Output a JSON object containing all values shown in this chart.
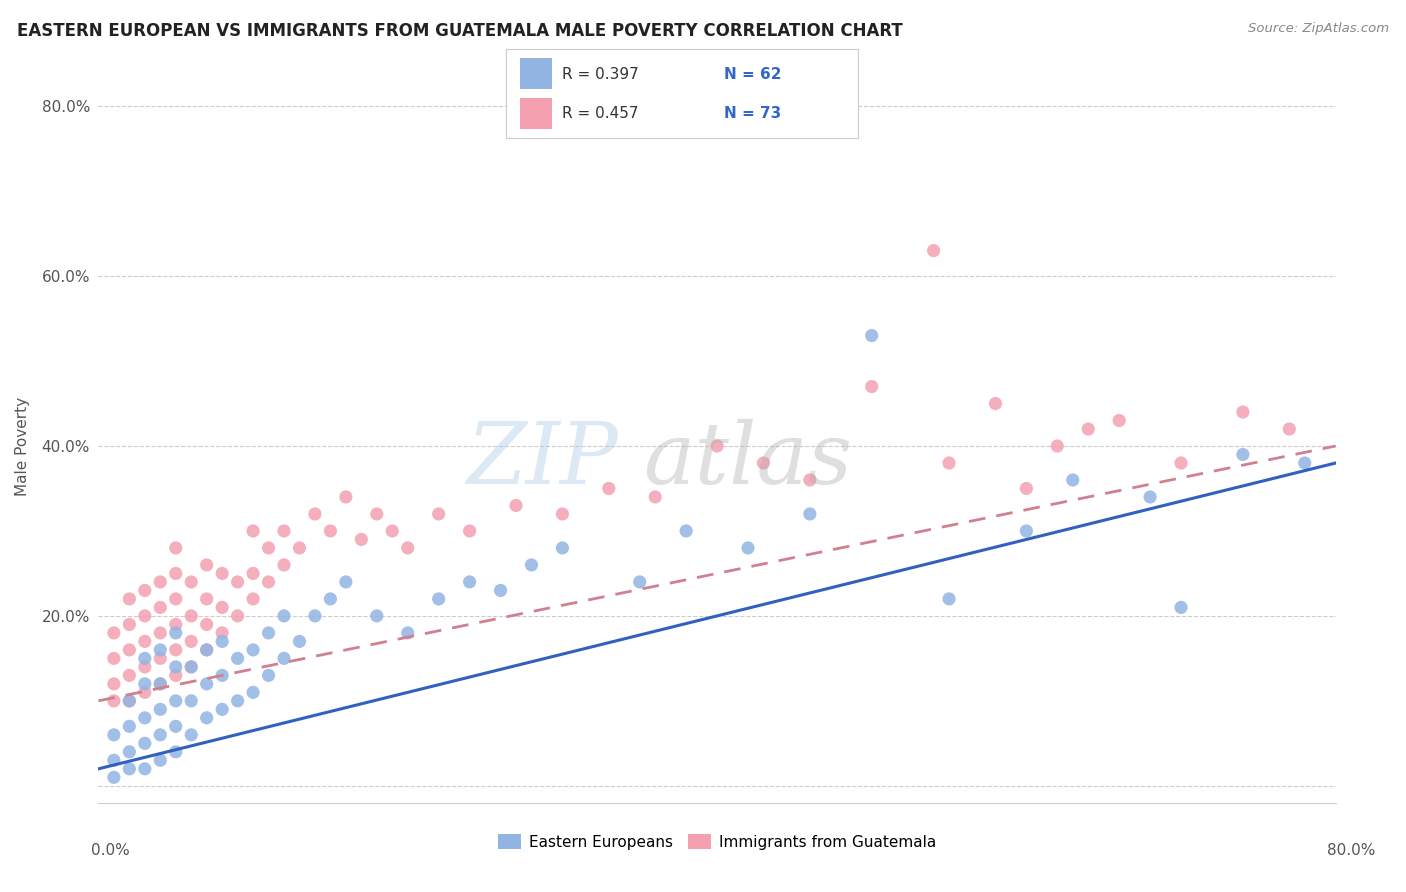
{
  "title": "EASTERN EUROPEAN VS IMMIGRANTS FROM GUATEMALA MALE POVERTY CORRELATION CHART",
  "source": "Source: ZipAtlas.com",
  "ylabel": "Male Poverty",
  "xmin": 0.0,
  "xmax": 0.8,
  "ymin": -0.02,
  "ymax": 0.82,
  "yticks": [
    0.0,
    0.2,
    0.4,
    0.6,
    0.8
  ],
  "ytick_labels": [
    "",
    "20.0%",
    "40.0%",
    "60.0%",
    "80.0%"
  ],
  "legend_blue_r": "R = 0.397",
  "legend_blue_n": "N = 62",
  "legend_pink_r": "R = 0.457",
  "legend_pink_n": "N = 73",
  "label_blue": "Eastern Europeans",
  "label_pink": "Immigrants from Guatemala",
  "blue_color": "#92b4e3",
  "pink_color": "#f4a0b0",
  "trend_blue_color": "#3060c0",
  "trend_pink_color": "#d08090",
  "blue_scatter_x": [
    0.01,
    0.01,
    0.01,
    0.02,
    0.02,
    0.02,
    0.02,
    0.03,
    0.03,
    0.03,
    0.03,
    0.03,
    0.04,
    0.04,
    0.04,
    0.04,
    0.04,
    0.05,
    0.05,
    0.05,
    0.05,
    0.05,
    0.06,
    0.06,
    0.06,
    0.07,
    0.07,
    0.07,
    0.08,
    0.08,
    0.08,
    0.09,
    0.09,
    0.1,
    0.1,
    0.11,
    0.11,
    0.12,
    0.12,
    0.13,
    0.14,
    0.15,
    0.16,
    0.18,
    0.2,
    0.22,
    0.24,
    0.26,
    0.28,
    0.3,
    0.35,
    0.38,
    0.42,
    0.46,
    0.5,
    0.55,
    0.6,
    0.63,
    0.68,
    0.7,
    0.74,
    0.78
  ],
  "blue_scatter_y": [
    0.01,
    0.03,
    0.06,
    0.02,
    0.04,
    0.07,
    0.1,
    0.02,
    0.05,
    0.08,
    0.12,
    0.15,
    0.03,
    0.06,
    0.09,
    0.12,
    0.16,
    0.04,
    0.07,
    0.1,
    0.14,
    0.18,
    0.06,
    0.1,
    0.14,
    0.08,
    0.12,
    0.16,
    0.09,
    0.13,
    0.17,
    0.1,
    0.15,
    0.11,
    0.16,
    0.13,
    0.18,
    0.15,
    0.2,
    0.17,
    0.2,
    0.22,
    0.24,
    0.2,
    0.18,
    0.22,
    0.24,
    0.23,
    0.26,
    0.28,
    0.24,
    0.3,
    0.28,
    0.32,
    0.53,
    0.22,
    0.3,
    0.36,
    0.34,
    0.21,
    0.39,
    0.38
  ],
  "pink_scatter_x": [
    0.01,
    0.01,
    0.01,
    0.01,
    0.02,
    0.02,
    0.02,
    0.02,
    0.02,
    0.03,
    0.03,
    0.03,
    0.03,
    0.03,
    0.04,
    0.04,
    0.04,
    0.04,
    0.04,
    0.05,
    0.05,
    0.05,
    0.05,
    0.05,
    0.05,
    0.06,
    0.06,
    0.06,
    0.06,
    0.07,
    0.07,
    0.07,
    0.07,
    0.08,
    0.08,
    0.08,
    0.09,
    0.09,
    0.1,
    0.1,
    0.1,
    0.11,
    0.11,
    0.12,
    0.12,
    0.13,
    0.14,
    0.15,
    0.16,
    0.17,
    0.18,
    0.19,
    0.2,
    0.22,
    0.24,
    0.27,
    0.3,
    0.33,
    0.36,
    0.4,
    0.43,
    0.46,
    0.5,
    0.55,
    0.58,
    0.62,
    0.66,
    0.7,
    0.74,
    0.77,
    0.54,
    0.6,
    0.64
  ],
  "pink_scatter_y": [
    0.1,
    0.12,
    0.15,
    0.18,
    0.1,
    0.13,
    0.16,
    0.19,
    0.22,
    0.11,
    0.14,
    0.17,
    0.2,
    0.23,
    0.12,
    0.15,
    0.18,
    0.21,
    0.24,
    0.13,
    0.16,
    0.19,
    0.22,
    0.25,
    0.28,
    0.14,
    0.17,
    0.2,
    0.24,
    0.16,
    0.19,
    0.22,
    0.26,
    0.18,
    0.21,
    0.25,
    0.2,
    0.24,
    0.22,
    0.25,
    0.3,
    0.24,
    0.28,
    0.26,
    0.3,
    0.28,
    0.32,
    0.3,
    0.34,
    0.29,
    0.32,
    0.3,
    0.28,
    0.32,
    0.3,
    0.33,
    0.32,
    0.35,
    0.34,
    0.4,
    0.38,
    0.36,
    0.47,
    0.38,
    0.45,
    0.4,
    0.43,
    0.38,
    0.44,
    0.42,
    0.63,
    0.35,
    0.42
  ],
  "trend_blue_x0": 0.0,
  "trend_blue_y0": 0.02,
  "trend_blue_x1": 0.8,
  "trend_blue_y1": 0.38,
  "trend_pink_x0": 0.0,
  "trend_pink_y0": 0.1,
  "trend_pink_x1": 0.8,
  "trend_pink_y1": 0.4
}
